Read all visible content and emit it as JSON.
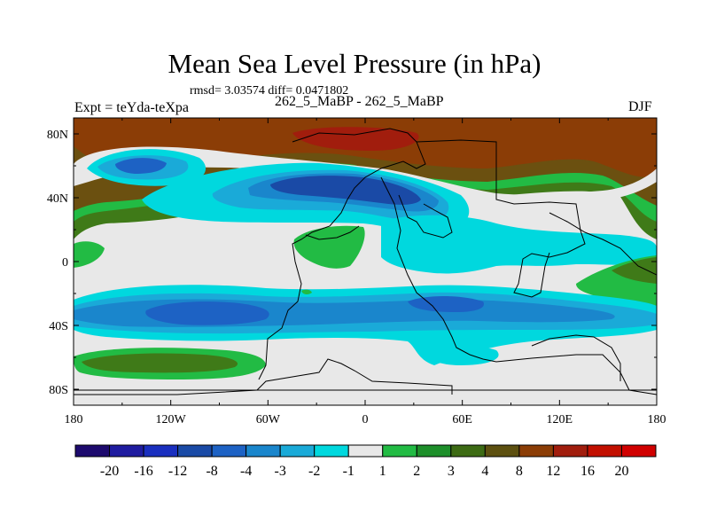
{
  "title": "Mean Sea Level Pressure (in hPa)",
  "stats": "rmsd= 3.03574 diff= 0.0471802",
  "experiment": "Expt = teYda-teXpa",
  "subtitle": "262_5_MaBP - 262_5_MaBP",
  "season": "DJF",
  "chart_data": {
    "type": "heatmap",
    "title": "Mean Sea Level Pressure (in hPa)",
    "xlabel": "",
    "ylabel": "",
    "x_ticks": [
      "180",
      "120W",
      "60W",
      "0",
      "60E",
      "120E",
      "180"
    ],
    "x_tick_values": [
      -180,
      -120,
      -60,
      0,
      60,
      120,
      180
    ],
    "y_ticks": [
      "80N",
      "40N",
      "0",
      "40S",
      "80S"
    ],
    "y_tick_values": [
      80,
      40,
      0,
      -40,
      -80
    ],
    "xlim": [
      -180,
      180
    ],
    "ylim": [
      -90,
      90
    ],
    "colorbar_labels": [
      "-20",
      "-16",
      "-12",
      "-8",
      "-4",
      "-3",
      "-2",
      "-1",
      "1",
      "2",
      "3",
      "4",
      "8",
      "12",
      "16",
      "20"
    ],
    "colorbar_colors": [
      "#1d0a6e",
      "#1f1ca0",
      "#1a2fbf",
      "#1a4aa6",
      "#1d62c4",
      "#1a86cc",
      "#1aaad8",
      "#00d8de",
      "#e8e8e8",
      "#22bb44",
      "#1d8f2a",
      "#3d6b14",
      "#5d5010",
      "#8b3d06",
      "#a11d0d",
      "#c20f00",
      "#d00000"
    ],
    "regions": [
      {
        "name": "north-polar-high",
        "level": "12"
      },
      {
        "name": "north-pacific-low",
        "level": "-8"
      },
      {
        "name": "north-atlantic-low",
        "level": "-12"
      },
      {
        "name": "southern-ocean-low",
        "level": "-8"
      },
      {
        "name": "south-pacific-high",
        "level": "3"
      },
      {
        "name": "east-pacific-high",
        "level": "4"
      }
    ]
  }
}
